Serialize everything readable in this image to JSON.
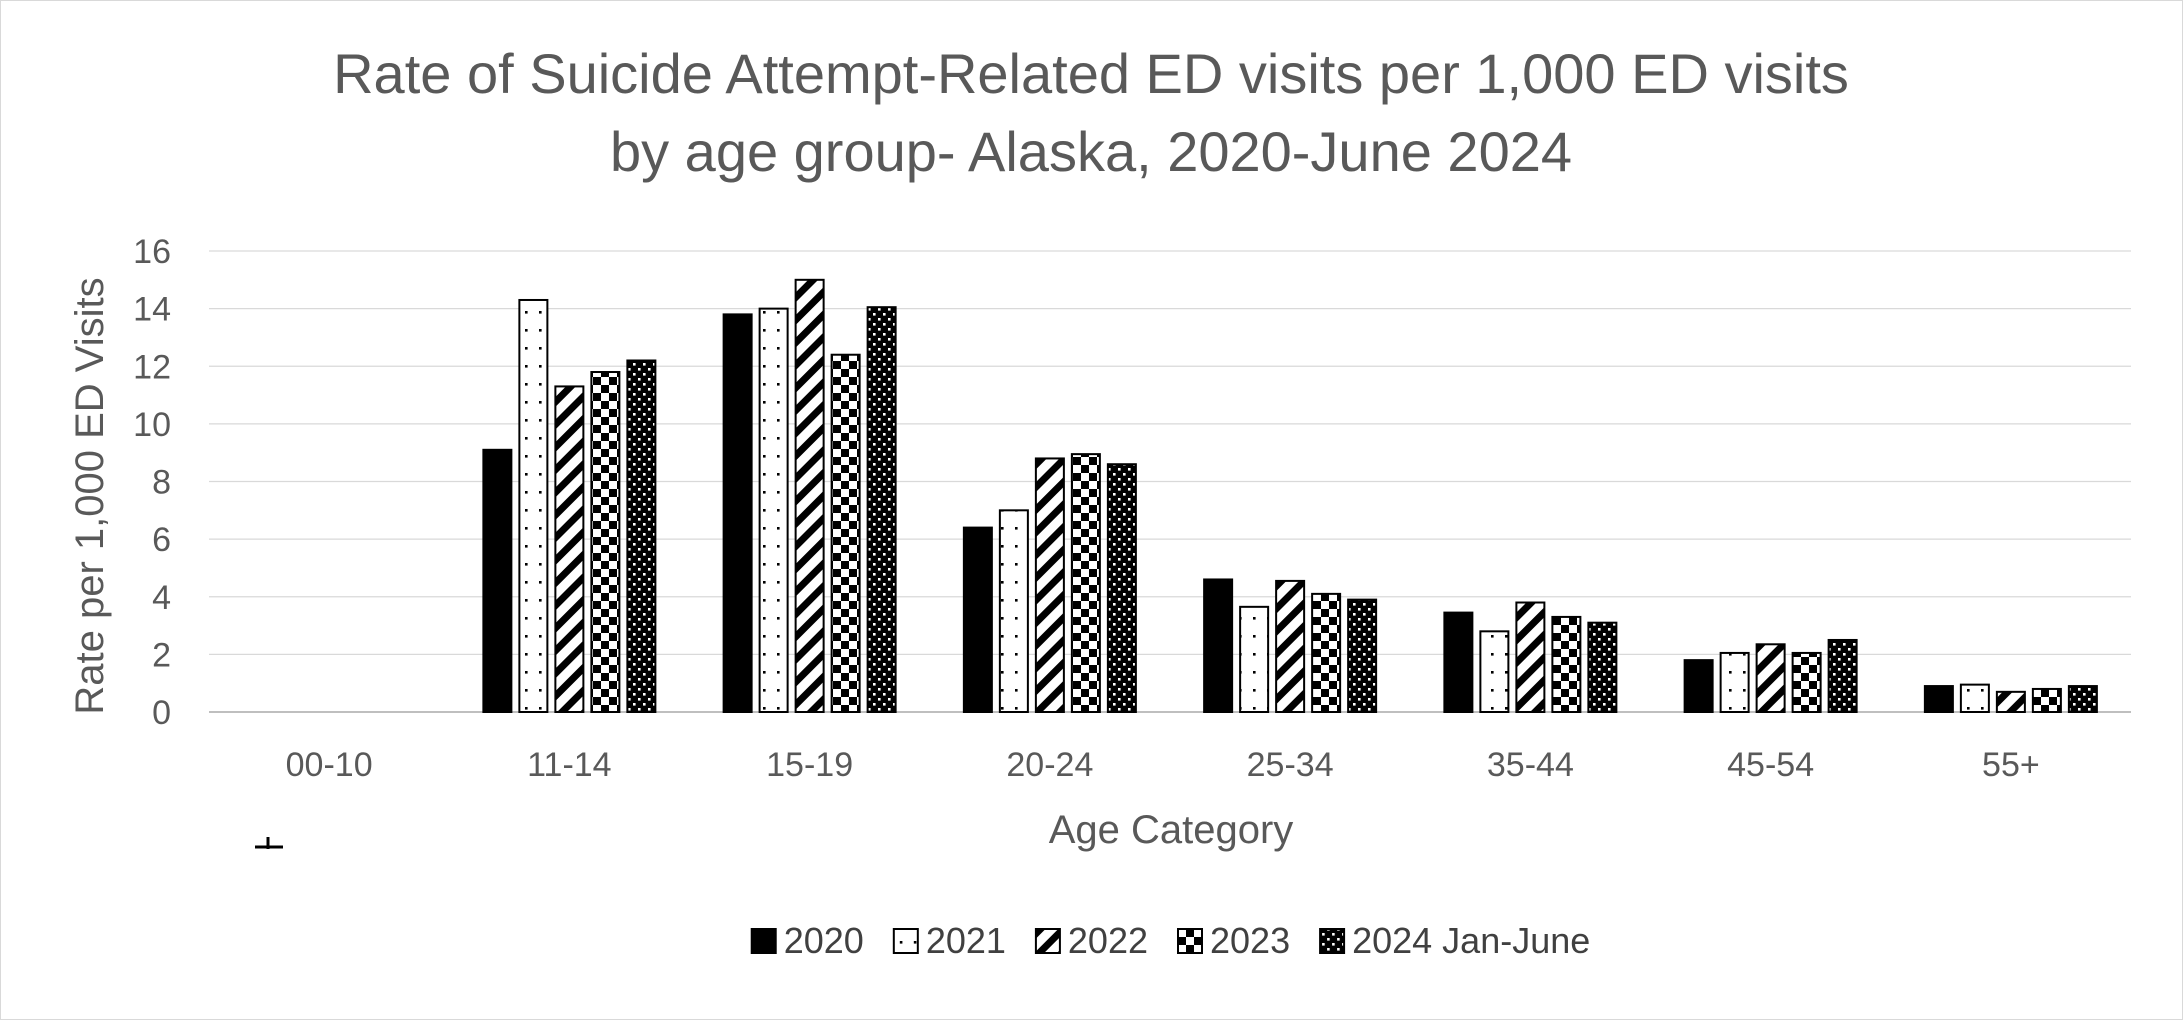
{
  "chart_data": {
    "type": "bar",
    "title": "Rate of Suicide Attempt-Related ED visits per 1,000 ED visits by age group- Alaska, 2020-June 2024",
    "title_lines": [
      "Rate of Suicide Attempt-Related ED visits per 1,000 ED visits",
      "by age group- Alaska, 2020-June 2024"
    ],
    "xlabel": "Age Category",
    "ylabel": "Rate per 1,000 ED Visits",
    "ylim": [
      0,
      16
    ],
    "yticks": [
      "0",
      "2",
      "4",
      "6",
      "8",
      "10",
      "12",
      "14",
      "16"
    ],
    "categories": [
      "00-10",
      "11-14",
      "15-19",
      "20-24",
      "25-34",
      "35-44",
      "45-54",
      "55+"
    ],
    "series": [
      {
        "name": "2020",
        "pattern": "solid",
        "values": [
          0,
          9.1,
          13.8,
          6.4,
          4.6,
          3.45,
          1.8,
          0.9
        ]
      },
      {
        "name": "2021",
        "pattern": "sparse-dots",
        "values": [
          0,
          14.3,
          14.0,
          7.0,
          3.65,
          2.8,
          2.05,
          0.95
        ]
      },
      {
        "name": "2022",
        "pattern": "diagonal-stripes",
        "values": [
          0,
          11.3,
          15.0,
          8.8,
          4.55,
          3.8,
          2.35,
          0.7
        ]
      },
      {
        "name": "2023",
        "pattern": "checker",
        "values": [
          0,
          11.8,
          12.4,
          8.95,
          4.1,
          3.3,
          2.05,
          0.8
        ]
      },
      {
        "name": "2024 Jan-June",
        "pattern": "dense-dots",
        "values": [
          0,
          12.2,
          14.05,
          8.6,
          3.9,
          3.1,
          2.5,
          0.9
        ]
      }
    ],
    "grid": true,
    "legend_position": "bottom",
    "colors": {
      "ink": "#000000",
      "text": "#595959",
      "grid": "#d9d9d9",
      "background": "#ffffff"
    }
  }
}
